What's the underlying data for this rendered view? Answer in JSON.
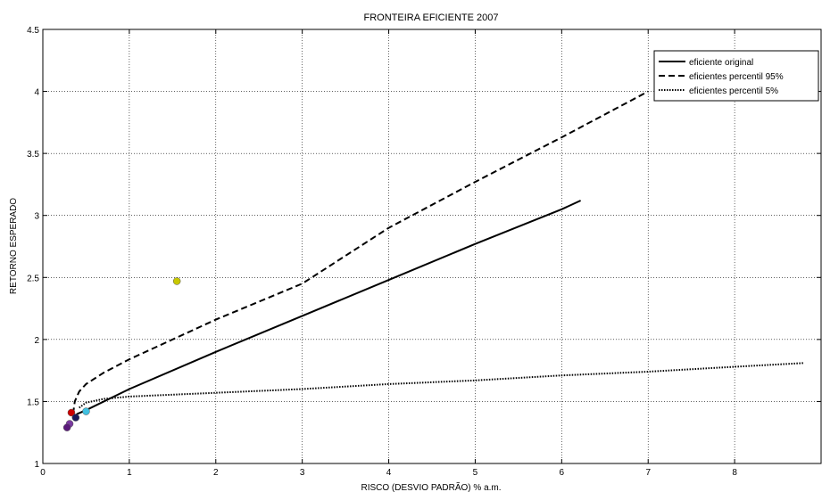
{
  "chart_data": {
    "type": "line",
    "title": "FRONTEIRA EFICIENTE 2007",
    "xlabel": "RISCO (DESVIO PADRÃO) % a.m.",
    "ylabel": "RETORNO ESPERADO",
    "xlim": [
      0,
      9
    ],
    "ylim": [
      1,
      4.5
    ],
    "xticks": [
      "0",
      "1",
      "2",
      "3",
      "4",
      "5",
      "6",
      "7",
      "8"
    ],
    "yticks": [
      "1",
      "1.5",
      "2",
      "2.5",
      "3",
      "3.5",
      "4",
      "4.5"
    ],
    "grid": true,
    "legend_position": "top-right",
    "series": [
      {
        "name": "eficiente original",
        "style": "solid",
        "color": "#000000",
        "x": [
          0.36,
          0.4,
          0.5,
          1,
          2,
          3,
          4,
          5,
          6,
          6.22
        ],
        "y": [
          1.38,
          1.4,
          1.43,
          1.6,
          1.9,
          2.19,
          2.48,
          2.77,
          3.05,
          3.12
        ]
      },
      {
        "name": "eficientes percentil 95%",
        "style": "dashed",
        "color": "#000000",
        "x": [
          0.35,
          0.37,
          0.42,
          0.5,
          0.7,
          1,
          1.5,
          2,
          3,
          4,
          5,
          6,
          7
        ],
        "y": [
          1.4,
          1.5,
          1.58,
          1.64,
          1.73,
          1.84,
          2.0,
          2.16,
          2.45,
          2.9,
          3.27,
          3.63,
          4.0
        ]
      },
      {
        "name": "eficientes percentil 5%",
        "style": "dotted",
        "color": "#000000",
        "x": [
          0.42,
          0.5,
          0.7,
          1,
          2,
          3,
          4,
          5,
          6,
          7,
          8,
          8.8
        ],
        "y": [
          1.45,
          1.49,
          1.52,
          1.54,
          1.57,
          1.6,
          1.64,
          1.67,
          1.71,
          1.74,
          1.78,
          1.81
        ]
      }
    ],
    "points": [
      {
        "x": 1.55,
        "y": 2.47,
        "color": "#c8c800"
      },
      {
        "x": 0.33,
        "y": 1.41,
        "color": "#cc0000"
      },
      {
        "x": 0.38,
        "y": 1.37,
        "color": "#1a1a5a"
      },
      {
        "x": 0.5,
        "y": 1.42,
        "color": "#40c0e0"
      },
      {
        "x": 0.31,
        "y": 1.32,
        "color": "#7a3aa0"
      },
      {
        "x": 0.28,
        "y": 1.29,
        "color": "#5a1a7a"
      }
    ]
  }
}
